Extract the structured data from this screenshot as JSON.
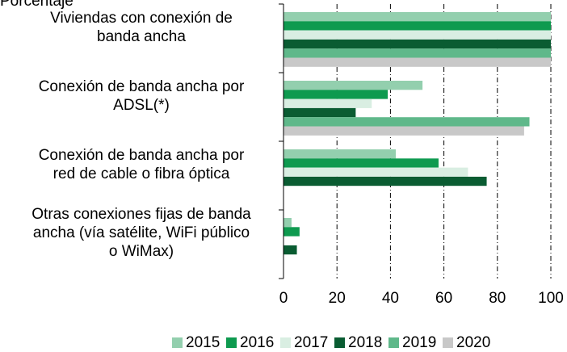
{
  "chart_data": {
    "type": "barh",
    "y_label": "Porcentaje",
    "categories": [
      "Viviendas con conexión de\nbanda ancha",
      "Conexión de banda ancha por\nADSL(*)",
      "Conexión de banda ancha por\nred de cable o fibra óptica",
      "Otras conexiones fijas de banda\nancha (vía satélite, WiFi público\no WiMax)"
    ],
    "series": [
      {
        "name": "2015",
        "color": "#93cfae",
        "values": [
          100,
          52,
          42,
          3
        ]
      },
      {
        "name": "2016",
        "color": "#0e9a4f",
        "values": [
          100,
          39,
          58,
          6
        ]
      },
      {
        "name": "2017",
        "color": "#d9eee2",
        "values": [
          100,
          33,
          69,
          null
        ]
      },
      {
        "name": "2018",
        "color": "#0a5c32",
        "values": [
          100,
          27,
          76,
          5
        ]
      },
      {
        "name": "2019",
        "color": "#5fb88a",
        "values": [
          100,
          92,
          null,
          null
        ]
      },
      {
        "name": "2020",
        "color": "#c8c8c8",
        "values": [
          100,
          90,
          null,
          null
        ]
      }
    ],
    "xlim": [
      0,
      100
    ],
    "xticks": [
      0,
      20,
      40,
      60,
      80,
      100
    ],
    "grid": true,
    "legend": "bottom"
  }
}
